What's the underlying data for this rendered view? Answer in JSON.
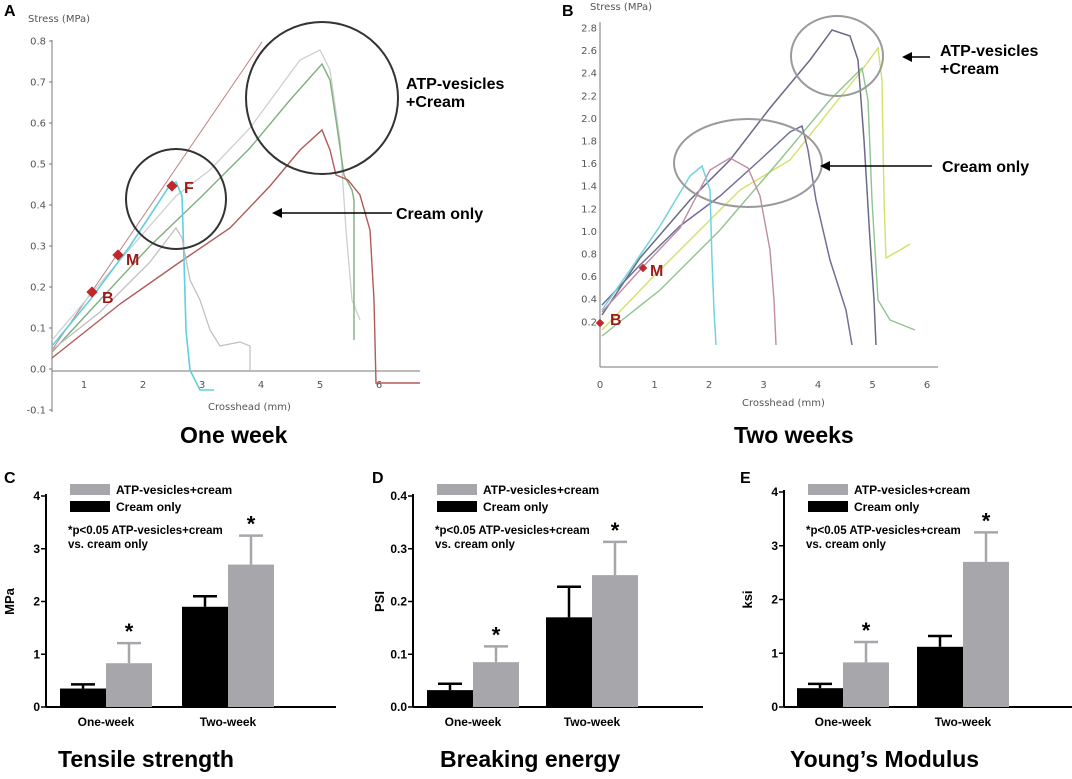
{
  "colors": {
    "cream_only_bar": "#000000",
    "atp_bar": "#a6a6ab",
    "marker": "#c0282b",
    "circle": "#333333",
    "circle_light": "#9a9a9a"
  },
  "panel_a": {
    "letter": "A",
    "y_axis_title": "Stress (MPa)",
    "x_axis_title": "Crosshead (mm)",
    "y_ticks": [
      "0.8",
      "0.7",
      "0.6",
      "0.5",
      "0.4",
      "0.3",
      "0.2",
      "0.1",
      "0.0",
      "-0.1"
    ],
    "x_ticks": [
      "1",
      "2",
      "3",
      "4",
      "5",
      "6"
    ],
    "callout_atp_line1": "ATP-vesicles",
    "callout_atp_line2": "+Cream",
    "callout_cream": "Cream only",
    "marker_f": "F",
    "marker_m": "M",
    "marker_b": "B",
    "caption": "One week"
  },
  "panel_b": {
    "letter": "B",
    "y_axis_title": "Stress (MPa)",
    "x_axis_title": "Crosshead (mm)",
    "y_ticks": [
      "2.8",
      "2.6",
      "2.4",
      "2.2",
      "2.0",
      "1.8",
      "1.6",
      "1.4",
      "1.2",
      "1.0",
      "0.8",
      "0.6",
      "0.4",
      "0.2"
    ],
    "x_ticks": [
      "0",
      "1",
      "2",
      "3",
      "4",
      "5",
      "6"
    ],
    "callout_atp_line1": "ATP-vesicles",
    "callout_atp_line2": "+Cream",
    "callout_cream": "Cream only",
    "marker_m": "M",
    "marker_b": "B",
    "caption": "Two weeks"
  },
  "chart_data": [
    {
      "id": "C",
      "type": "bar",
      "title": "Tensile strength",
      "ylabel": "MPa",
      "ylim": [
        0,
        4
      ],
      "yticks": [
        "0",
        "1",
        "2",
        "3",
        "4"
      ],
      "categories": [
        "One-week",
        "Two-week"
      ],
      "legend": [
        "ATP-vesicles+cream",
        "Cream only"
      ],
      "note_line1": "*p<0.05 ATP-vesicles+cream",
      "note_line2": "vs. cream only",
      "significance_marker": "*",
      "series": [
        {
          "name": "Cream only",
          "values": [
            0.35,
            1.9
          ],
          "errors": [
            0.08,
            0.2
          ]
        },
        {
          "name": "ATP-vesicles+cream",
          "values": [
            0.83,
            2.7
          ],
          "errors": [
            0.38,
            0.55
          ]
        }
      ]
    },
    {
      "id": "D",
      "type": "bar",
      "title": "Breaking energy",
      "ylabel": "PSI",
      "ylim": [
        0,
        0.4
      ],
      "yticks": [
        "0.0",
        "0.1",
        "0.2",
        "0.3",
        "0.4"
      ],
      "categories": [
        "One-week",
        "Two-week"
      ],
      "legend": [
        "ATP-vesicles+cream",
        "Cream only"
      ],
      "note_line1": "*p<0.05 ATP-vesicles+cream",
      "note_line2": "vs. cream only",
      "significance_marker": "*",
      "series": [
        {
          "name": "Cream only",
          "values": [
            0.032,
            0.17
          ],
          "errors": [
            0.012,
            0.058
          ]
        },
        {
          "name": "ATP-vesicles+cream",
          "values": [
            0.085,
            0.25
          ],
          "errors": [
            0.03,
            0.063
          ]
        }
      ]
    },
    {
      "id": "E",
      "type": "bar",
      "title": "Young’s Modulus",
      "ylabel": "ksi",
      "ylim": [
        0,
        4
      ],
      "yticks": [
        "0",
        "1",
        "2",
        "3",
        "4"
      ],
      "categories": [
        "One-week",
        "Two-week"
      ],
      "legend": [
        "ATP-vesicles+cream",
        "Cream only"
      ],
      "note_line1": "*p<0.05 ATP-vesicles+cream",
      "note_line2": "vs. cream only",
      "significance_marker": "*",
      "series": [
        {
          "name": "Cream only",
          "values": [
            0.35,
            1.12
          ],
          "errors": [
            0.08,
            0.2
          ]
        },
        {
          "name": "ATP-vesicles+cream",
          "values": [
            0.83,
            2.7
          ],
          "errors": [
            0.38,
            0.55
          ]
        }
      ]
    }
  ]
}
